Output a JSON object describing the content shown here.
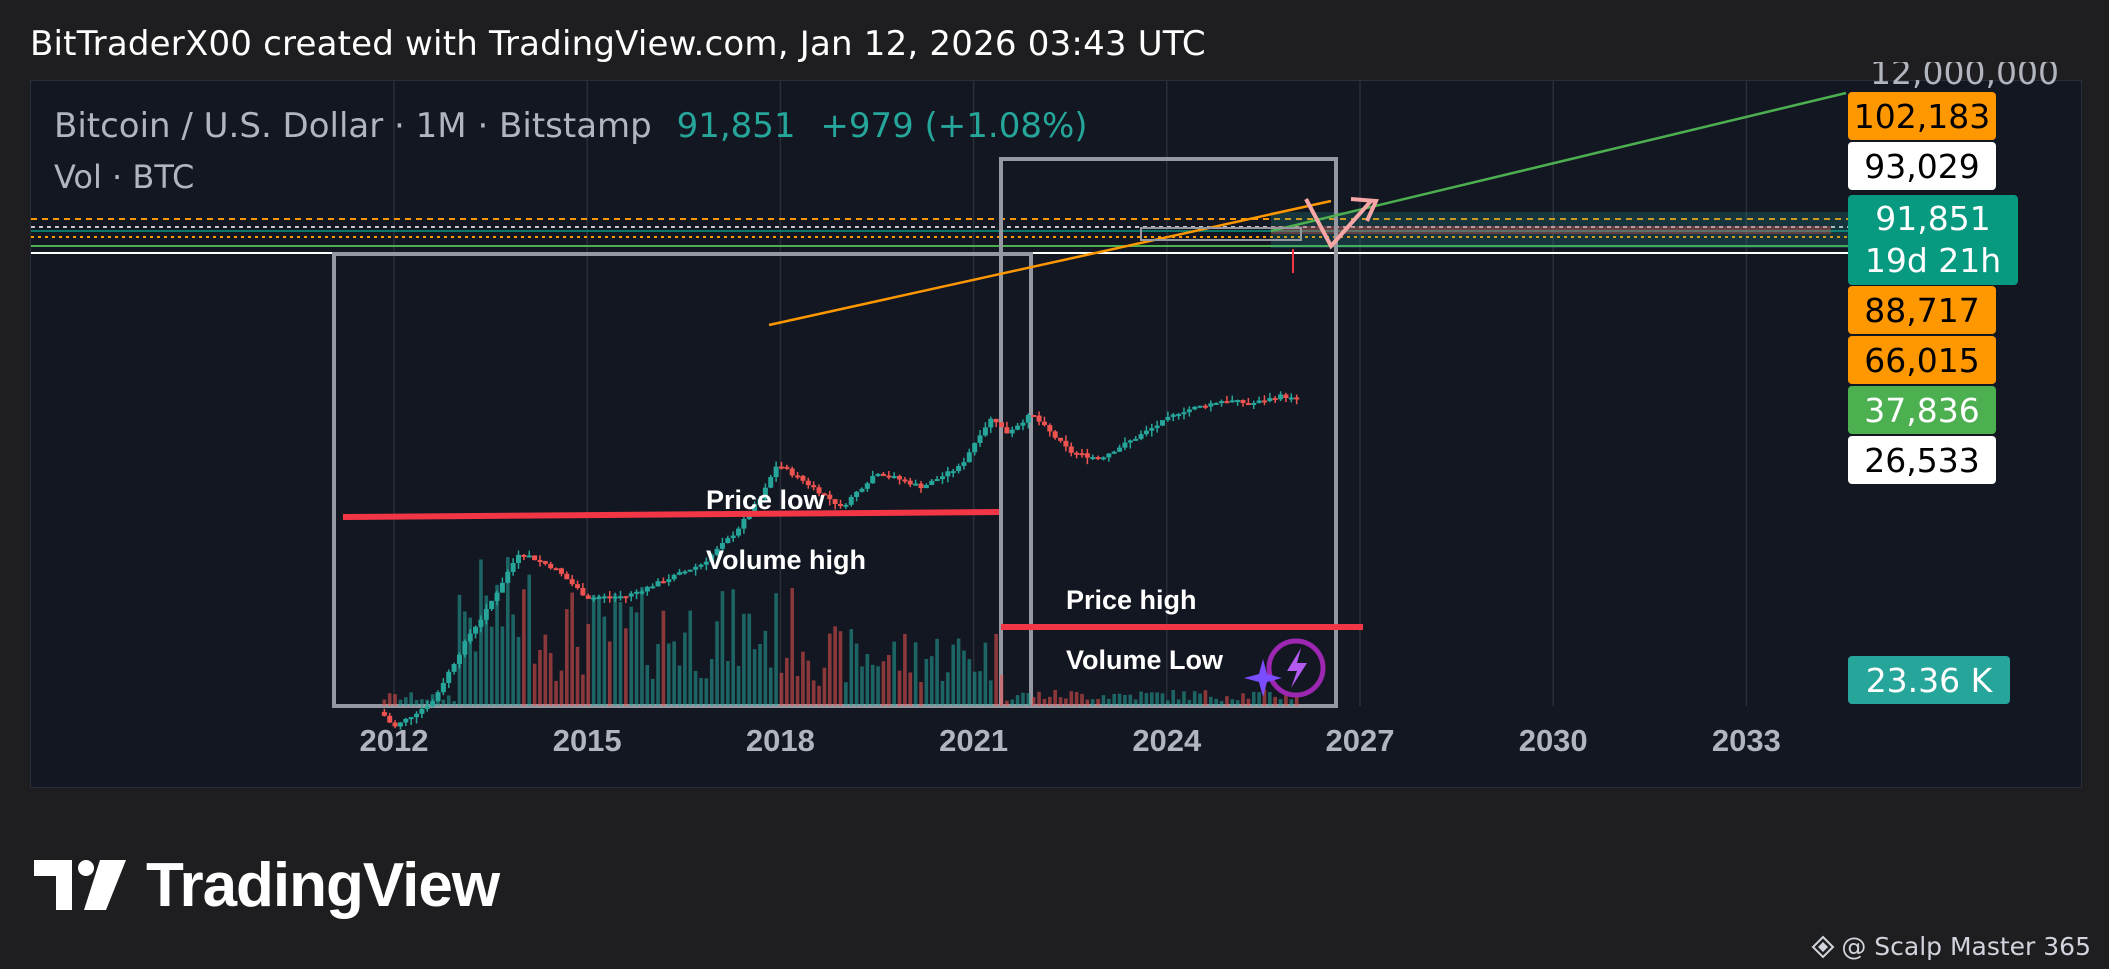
{
  "header": {
    "text": "BitTraderX00 created with TradingView.com, Jan 12, 2026 03:43 UTC"
  },
  "legend": {
    "symbol": "Bitcoin / U.S. Dollar · 1M · Bitstamp",
    "price": "91,851",
    "change": "+979 (+1.08%)",
    "volume_label": "Vol · BTC"
  },
  "price_axis": {
    "top_cut_label": "12,000,000",
    "tags": [
      {
        "label": "102,183",
        "bg": "#ff9800",
        "fg": "#000000"
      },
      {
        "label": "93,029",
        "bg": "#ffffff",
        "fg": "#000000"
      },
      {
        "label": "88,717",
        "bg": "#ff9800",
        "fg": "#000000"
      },
      {
        "label": "66,015",
        "bg": "#ff9800",
        "fg": "#000000"
      },
      {
        "label": "37,836",
        "bg": "#4caf50",
        "fg": "#ffffff"
      },
      {
        "label": "26,533",
        "bg": "#ffffff",
        "fg": "#000000"
      }
    ],
    "current": {
      "price": "91,851",
      "countdown": "19d 21h",
      "bg": "#089981"
    },
    "volume": {
      "label": "23.36 K",
      "bg": "#26a69a"
    }
  },
  "chart_data": {
    "type": "candlestick",
    "title": "Bitcoin / U.S. Dollar · 1M · Bitstamp",
    "x_ticks": [
      "2012",
      "2015",
      "2018",
      "2021",
      "2024",
      "2027",
      "2030",
      "2033"
    ],
    "annotations": [
      {
        "text": "Price low",
        "line_color": "#f23645"
      },
      {
        "text": "Volume high"
      },
      {
        "text": "Price high",
        "line_color": "#f23645"
      },
      {
        "text": "Volume Low"
      }
    ],
    "horizontal_levels": [
      102183,
      93029,
      91851,
      88717,
      66015,
      37836,
      26533
    ],
    "colors": {
      "up": "#26a69a",
      "down": "#ef5350",
      "trend_orange": "#ff9800",
      "trend_green": "#4caf50",
      "box": "#9598a1"
    }
  },
  "branding": {
    "logo_text": "TradingView",
    "footer": "@ Scalp Master 365"
  }
}
